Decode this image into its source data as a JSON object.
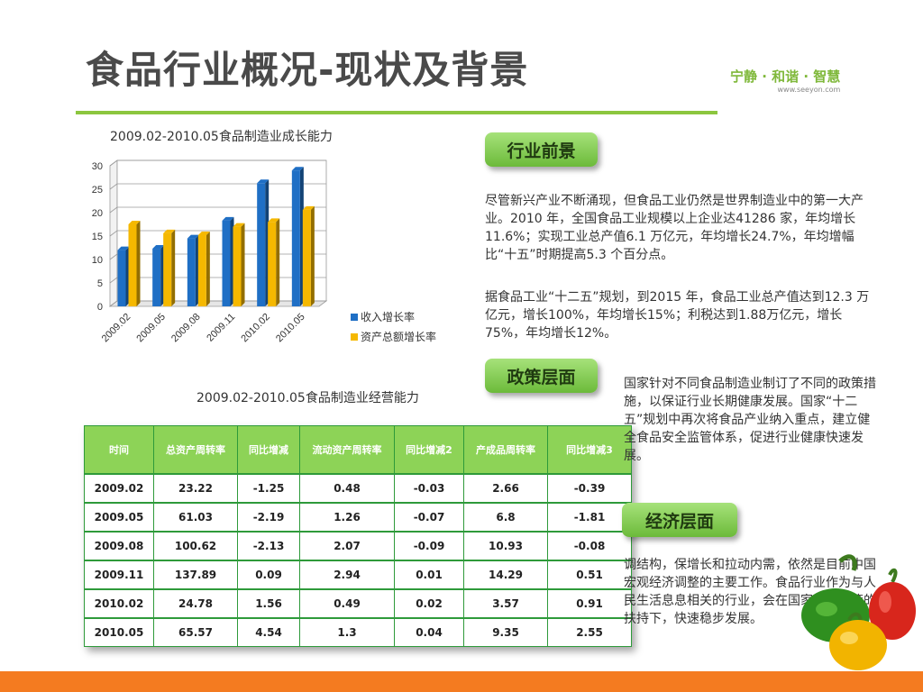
{
  "header": {
    "title": "食品行业概况-现状及背景",
    "brand_slogan": "宁静 · 和谐 · 智慧",
    "brand_url": "www.seeyon.com"
  },
  "chart_data": {
    "type": "bar",
    "title": "2009.02-2010.05食品制造业成长能力",
    "categories": [
      "2009.02",
      "2009.05",
      "2009.08",
      "2009.11",
      "2010.02",
      "2010.05"
    ],
    "series": [
      {
        "name": "收入增长率",
        "values": [
          12,
          12.3,
          14.5,
          18.3,
          26.3,
          29
        ],
        "color": "#1f6fc5"
      },
      {
        "name": "资产总额增长率",
        "values": [
          17.5,
          15.6,
          15.2,
          17,
          18,
          20.6
        ],
        "color": "#f5b800"
      }
    ],
    "ylim": [
      0,
      30
    ],
    "yticks": [
      "0",
      "5",
      "10",
      "15",
      "20",
      "25",
      "30"
    ],
    "legend": "right"
  },
  "table": {
    "title": "2009.02-2010.05食品制造业经营能力",
    "headers": [
      "时间",
      "总资产周转率",
      "同比增减",
      "流动资产周转率",
      "同比增减2",
      "产成品周转率",
      "同比增减3"
    ],
    "rows": [
      [
        "2009.02",
        "23.22",
        "-1.25",
        "0.48",
        "-0.03",
        "2.66",
        "-0.39"
      ],
      [
        "2009.05",
        "61.03",
        "-2.19",
        "1.26",
        "-0.07",
        "6.8",
        "-1.81"
      ],
      [
        "2009.08",
        "100.62",
        "-2.13",
        "2.07",
        "-0.09",
        "10.93",
        "-0.08"
      ],
      [
        "2009.11",
        "137.89",
        "0.09",
        "2.94",
        "0.01",
        "14.29",
        "0.51"
      ],
      [
        "2010.02",
        "24.78",
        "1.56",
        "0.49",
        "0.02",
        "3.57",
        "0.91"
      ],
      [
        "2010.05",
        "65.57",
        "4.54",
        "1.3",
        "0.04",
        "9.35",
        "2.55"
      ]
    ]
  },
  "sections": {
    "industry": {
      "label": "行业前景",
      "para1": "尽管新兴产业不断涌现，但食品工业仍然是世界制造业中的第一大产业。2010 年，全国食品工业规模以上企业达41286 家，年均增长11.6%；实现工业总产值6.1 万亿元，年均增长24.7%，年均增幅比“十五”时期提高5.3 个百分点。",
      "para2": "据食品工业“十二五”规划，到2015 年，食品工业总产值达到12.3 万亿元，增长100%，年均增长15%；利税达到1.88万亿元，增长75%，年均增长12%。"
    },
    "policy": {
      "label": "政策层面",
      "para": "国家针对不同食品制造业制订了不同的政策措施，以保证行业长期健康发展。国家“十二五”规划中再次将食品产业纳入重点，建立健全食品安全监管体系，促进行业健康快速发展。"
    },
    "economy": {
      "label": "经济层面",
      "para": "调结构，保增长和拉动内需，依然是目前中国宏观经济调整的主要工作。食品行业作为与人民生活息息相关的行业，会在国家相关政策的扶持下，快速稳步发展。"
    }
  }
}
